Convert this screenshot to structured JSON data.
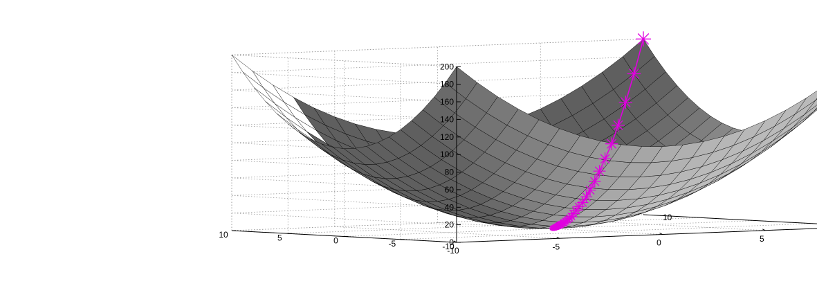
{
  "chart_data": {
    "type": "surface",
    "description_function": "z = x^2 + y^2",
    "x": [
      -10,
      -9,
      -8,
      -7,
      -6,
      -5,
      -4,
      -3,
      -2,
      -1,
      0,
      1,
      2,
      3,
      4,
      5,
      6,
      7,
      8,
      9,
      10
    ],
    "y": [
      -10,
      -9,
      -8,
      -7,
      -6,
      -5,
      -4,
      -3,
      -2,
      -1,
      0,
      1,
      2,
      3,
      4,
      5,
      6,
      7,
      8,
      9,
      10
    ],
    "xlim": [
      -10,
      10
    ],
    "ylim": [
      -10,
      10
    ],
    "zlim": [
      0,
      200
    ],
    "grid": true,
    "title": "",
    "xlabel": "",
    "ylabel": "",
    "zlabel": "",
    "z_ticks": [
      "0",
      "20",
      "40",
      "60",
      "80",
      "100",
      "120",
      "140",
      "160",
      "180",
      "200"
    ],
    "x_ticks": [
      "-10",
      "-5",
      "0",
      "5",
      "10"
    ],
    "y_ticks": [
      "-10",
      "-5",
      "0",
      "5",
      "10"
    ],
    "trajectory_points": [
      {
        "x": 10,
        "y": 10,
        "z": 200
      },
      {
        "x": 9,
        "y": 9,
        "z": 162
      },
      {
        "x": 8.1,
        "y": 8.1,
        "z": 131
      },
      {
        "x": 7.3,
        "y": 7.3,
        "z": 106
      },
      {
        "x": 6.6,
        "y": 6.6,
        "z": 86
      },
      {
        "x": 5.9,
        "y": 5.9,
        "z": 70
      },
      {
        "x": 5.3,
        "y": 5.3,
        "z": 57
      },
      {
        "x": 4.8,
        "y": 4.8,
        "z": 46
      },
      {
        "x": 4.3,
        "y": 4.3,
        "z": 37
      },
      {
        "x": 3.9,
        "y": 3.9,
        "z": 30
      },
      {
        "x": 3.5,
        "y": 3.5,
        "z": 24
      },
      {
        "x": 3.1,
        "y": 3.1,
        "z": 20
      },
      {
        "x": 2.8,
        "y": 2.8,
        "z": 16
      },
      {
        "x": 2.5,
        "y": 2.5,
        "z": 13
      },
      {
        "x": 2.3,
        "y": 2.3,
        "z": 10
      },
      {
        "x": 2.1,
        "y": 2.1,
        "z": 8.5
      },
      {
        "x": 1.9,
        "y": 1.9,
        "z": 7
      },
      {
        "x": 1.7,
        "y": 1.7,
        "z": 5.6
      },
      {
        "x": 1.5,
        "y": 1.5,
        "z": 4.6
      },
      {
        "x": 1.4,
        "y": 1.4,
        "z": 3.7
      },
      {
        "x": 1.2,
        "y": 1.2,
        "z": 3
      },
      {
        "x": 1.1,
        "y": 1.1,
        "z": 2.4
      },
      {
        "x": 1.0,
        "y": 1.0,
        "z": 2.0
      },
      {
        "x": 0.9,
        "y": 0.9,
        "z": 1.6
      },
      {
        "x": 0.8,
        "y": 0.8,
        "z": 1.3
      },
      {
        "x": 0.7,
        "y": 0.7,
        "z": 1.0
      },
      {
        "x": 0.65,
        "y": 0.65,
        "z": 0.85
      },
      {
        "x": 0.6,
        "y": 0.6,
        "z": 0.7
      },
      {
        "x": 0.5,
        "y": 0.5,
        "z": 0.5
      },
      {
        "x": 0.45,
        "y": 0.45,
        "z": 0.4
      },
      {
        "x": 0.4,
        "y": 0.4,
        "z": 0.3
      },
      {
        "x": 0.35,
        "y": 0.35,
        "z": 0.25
      },
      {
        "x": 0.3,
        "y": 0.3,
        "z": 0.2
      },
      {
        "x": 0.25,
        "y": 0.25,
        "z": 0.15
      },
      {
        "x": 0.2,
        "y": 0.2,
        "z": 0.1
      }
    ],
    "marker": "asterisk",
    "colors": {
      "trajectory": "#e000e0",
      "surface_light": "#f2f2f2",
      "surface_dark": "#6e6e6e",
      "mesh": "#000000",
      "grid": "#9a9a9a",
      "axis": "#000000"
    }
  }
}
